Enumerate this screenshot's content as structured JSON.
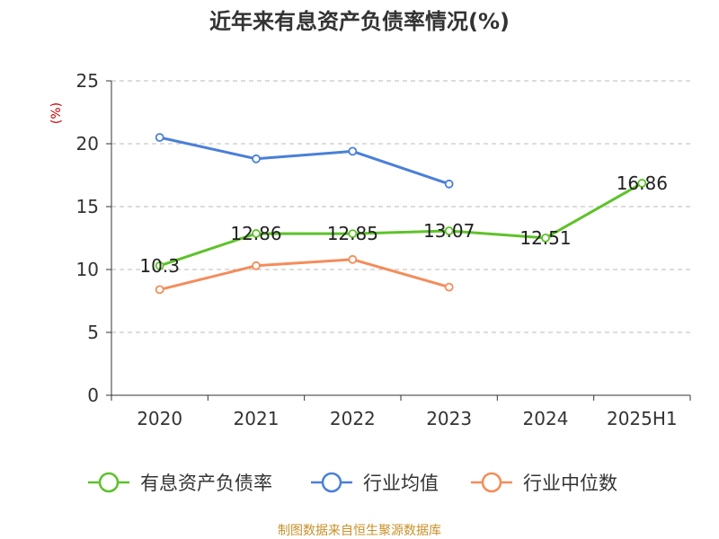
{
  "chart_data": {
    "type": "line",
    "title": "近年来有息资产负债率情况(%)",
    "ylabel": "(%)",
    "xlabel": "",
    "categories": [
      "2020",
      "2021",
      "2022",
      "2023",
      "2024",
      "2025H1"
    ],
    "ylim": [
      0,
      25
    ],
    "yticks": [
      0,
      5,
      10,
      15,
      20,
      25
    ],
    "grid": true,
    "legend_position": "bottom",
    "series": [
      {
        "name": "有息资产负债率",
        "color": "#5ec22a",
        "values": [
          10.3,
          12.86,
          12.85,
          13.07,
          12.51,
          16.86
        ],
        "labels": [
          "10.3",
          "12.86",
          "12.85",
          "13.07",
          "12.51",
          "16.86"
        ]
      },
      {
        "name": "行业均值",
        "color": "#4a7fd9",
        "values": [
          20.5,
          18.8,
          19.4,
          16.8,
          null,
          null
        ]
      },
      {
        "name": "行业中位数",
        "color": "#f58c5a",
        "values": [
          8.4,
          10.3,
          10.8,
          8.6,
          null,
          null
        ]
      }
    ]
  },
  "source": "制图数据来自恒生聚源数据库"
}
